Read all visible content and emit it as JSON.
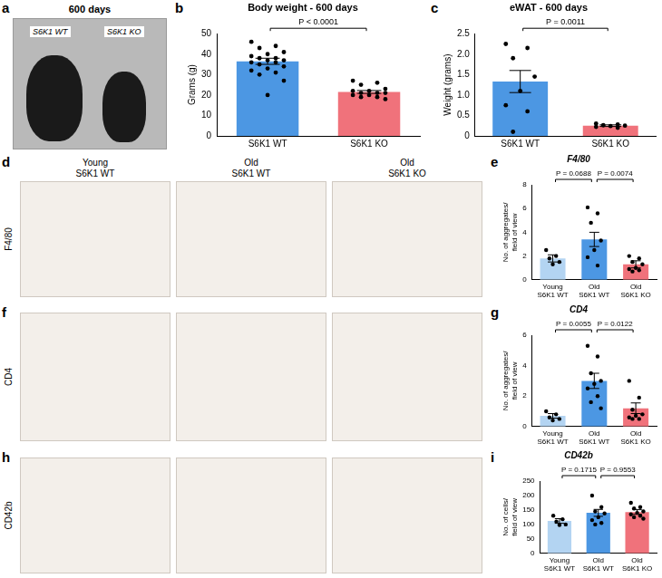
{
  "figure": {
    "photo": {
      "panel": "a",
      "title": "600 days",
      "labels": [
        "S6K1 WT",
        "S6K1 KO"
      ]
    },
    "micrograph_columns": [
      "Young S6K1 WT",
      "Old S6K1 WT",
      "Old S6K1 KO"
    ],
    "micrographs": [
      {
        "panel": "d",
        "row_label": "F4/80"
      },
      {
        "panel": "f",
        "row_label": "CD4"
      },
      {
        "panel": "h",
        "row_label": "CD42b"
      }
    ]
  },
  "chart_data": [
    {
      "panel": "b",
      "type": "bar",
      "title": "Body weight - 600 days",
      "y_label": "Grams (g)",
      "categories": [
        "S6K1 WT",
        "S6K1 KO"
      ],
      "values": [
        36.5,
        21.5
      ],
      "errors": [
        1.5,
        0.7
      ],
      "points": [
        [
          46,
          44,
          43,
          41,
          40,
          39,
          38,
          38,
          37,
          37,
          36,
          36,
          35,
          34,
          33,
          32,
          31,
          30,
          27,
          20
        ],
        [
          27,
          26,
          25,
          23,
          22,
          22,
          21,
          21,
          21,
          20,
          20,
          19,
          19,
          18
        ]
      ],
      "colors": [
        "#4c97e3",
        "#f0727b"
      ],
      "ylim": [
        0,
        50
      ],
      "yticks": [
        0,
        10,
        20,
        30,
        40,
        50
      ],
      "grid": false,
      "annotations": [
        {
          "text": "P < 0.0001",
          "between": [
            "S6K1 WT",
            "S6K1 KO"
          ]
        }
      ]
    },
    {
      "panel": "c",
      "type": "bar",
      "title": "eWAT - 600 days",
      "y_label": "Weight (grams)",
      "categories": [
        "S6K1 WT",
        "S6K1 KO"
      ],
      "values": [
        1.33,
        0.25
      ],
      "errors": [
        0.27,
        0.02
      ],
      "points": [
        [
          2.25,
          2.15,
          1.9,
          1.45,
          1.1,
          0.75,
          0.6,
          0.1
        ],
        [
          0.3,
          0.28,
          0.26,
          0.25,
          0.24,
          0.22,
          0.2
        ]
      ],
      "colors": [
        "#4c97e3",
        "#f0727b"
      ],
      "ylim": [
        0,
        2.5
      ],
      "yticks": [
        0,
        0.5,
        {
          "value": 1,
          "label": "1.0"
        },
        1.5,
        {
          "value": 2,
          "label": "2.0"
        },
        2.5
      ],
      "grid": false,
      "annotations": [
        {
          "text": "P = 0.0011",
          "between": [
            "S6K1 WT",
            "S6K1 KO"
          ]
        }
      ]
    },
    {
      "panel": "e",
      "type": "bar",
      "title": "F4/80",
      "y_label": "No. of aggregates/ field of view",
      "categories": [
        "Young S6K1 WT",
        "Old S6K1 WT",
        "Old S6K1 KO"
      ],
      "values": [
        1.8,
        3.4,
        1.3
      ],
      "errors": [
        0.3,
        0.6,
        0.3
      ],
      "points": [
        [
          2.5,
          2.0,
          1.8,
          1.5,
          1.3
        ],
        [
          6.1,
          5.6,
          4.8,
          3.3,
          2.5,
          1.9,
          1.2
        ],
        [
          2.0,
          1.8,
          1.5,
          1.3,
          1.0,
          0.9,
          0.8,
          0.7
        ]
      ],
      "colors": [
        "#b3d4f2",
        "#4c97e3",
        "#f0727b"
      ],
      "ylim": [
        0,
        8
      ],
      "yticks": [
        0,
        2,
        4,
        6,
        8
      ],
      "grid": false,
      "annotations": [
        {
          "text": "P = 0.0688",
          "between": [
            "Young S6K1 WT",
            "Old S6K1 WT"
          ]
        },
        {
          "text": "P = 0.0074",
          "between": [
            "Old S6K1 WT",
            "Old S6K1 KO"
          ]
        }
      ]
    },
    {
      "panel": "g",
      "type": "bar",
      "title": "CD4",
      "y_label": "No. of aggregates/ field of view",
      "categories": [
        "Young S6K1 WT",
        "Old S6K1 WT",
        "Old S6K1 KO"
      ],
      "values": [
        0.7,
        3.0,
        1.2
      ],
      "errors": [
        0.15,
        0.5,
        0.35
      ],
      "points": [
        [
          1.0,
          0.8,
          0.6,
          0.5,
          0.4
        ],
        [
          5.3,
          4.6,
          3.5,
          3.0,
          2.8,
          2.5,
          2.0,
          1.6,
          1.2
        ],
        [
          3.0,
          1.9,
          1.1,
          0.8,
          0.7,
          0.6,
          0.5,
          0.5
        ]
      ],
      "colors": [
        "#b3d4f2",
        "#4c97e3",
        "#f0727b"
      ],
      "ylim": [
        0,
        6
      ],
      "yticks": [
        0,
        2,
        4,
        6
      ],
      "grid": false,
      "annotations": [
        {
          "text": "P = 0.0055",
          "between": [
            "Young S6K1 WT",
            "Old S6K1 WT"
          ]
        },
        {
          "text": "P = 0.0122",
          "between": [
            "Old S6K1 WT",
            "Old S6K1 KO"
          ]
        }
      ]
    },
    {
      "panel": "i",
      "type": "bar",
      "title": "CD42b",
      "y_label": "No. of cells/ field of view",
      "categories": [
        "Young S6K1 WT",
        "Old S6K1 WT",
        "Old S6K1 KO"
      ],
      "values": [
        112,
        140,
        143
      ],
      "errors": [
        8,
        12,
        8
      ],
      "points": [
        [
          130,
          118,
          110,
          100,
          98
        ],
        [
          200,
          160,
          145,
          138,
          125,
          115,
          105,
          100
        ],
        [
          175,
          160,
          155,
          145,
          140,
          135,
          130,
          125,
          120
        ]
      ],
      "colors": [
        "#b3d4f2",
        "#4c97e3",
        "#f0727b"
      ],
      "ylim": [
        0,
        250
      ],
      "yticks": [
        0,
        50,
        100,
        150,
        200,
        250
      ],
      "grid": false,
      "annotations": [
        {
          "text": "P = 0.1715",
          "between": [
            "Young S6K1 WT",
            "Old S6K1 WT"
          ]
        },
        {
          "text": "P = 0.9553",
          "between": [
            "Old S6K1 WT",
            "Old S6K1 KO"
          ]
        }
      ]
    }
  ]
}
